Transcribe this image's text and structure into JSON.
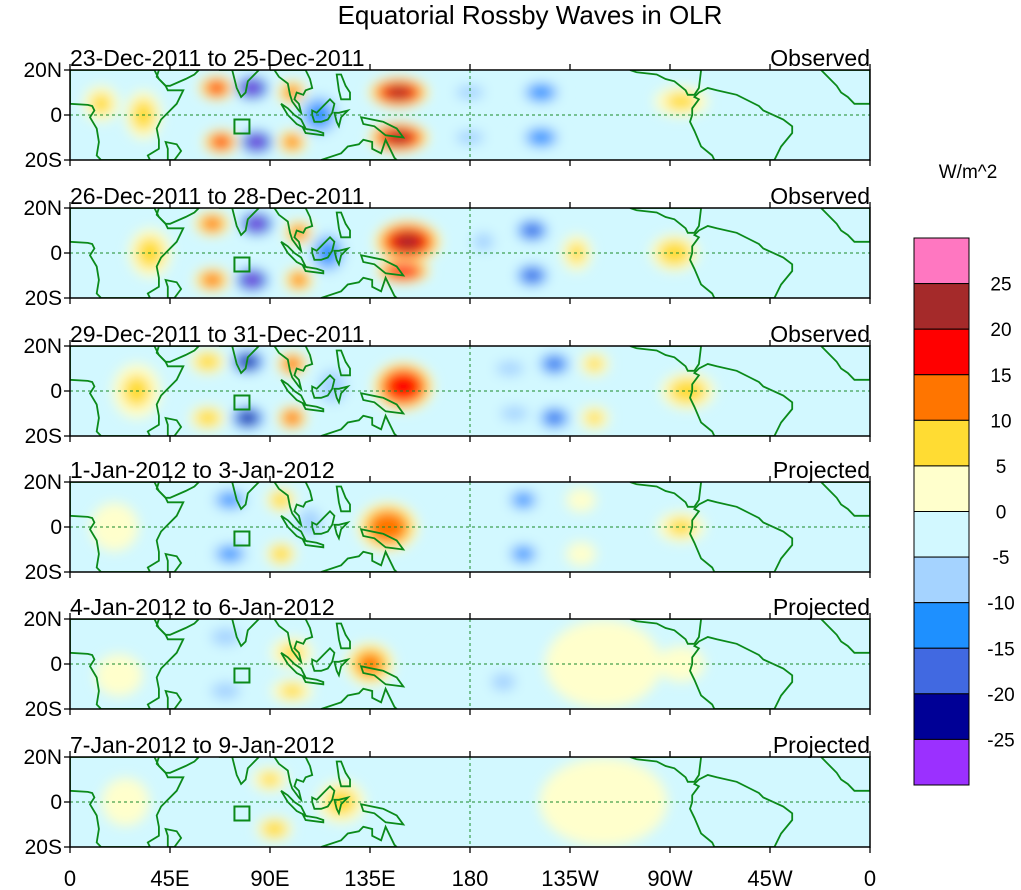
{
  "chart_data": {
    "type": "heatmap",
    "title": "Equatorial Rossby Waves in OLR",
    "units": "W/m^2",
    "x_ticks": [
      "0",
      "45E",
      "90E",
      "135E",
      "180",
      "135W",
      "90W",
      "45W",
      "0"
    ],
    "y_ticks": [
      "20N",
      "0",
      "20S"
    ],
    "xlim_deg_east": [
      0,
      360
    ],
    "ylim_deg": [
      -20,
      20
    ],
    "colorbar": {
      "levels": [
        "25",
        "20",
        "15",
        "10",
        "5",
        "0",
        "-5",
        "-10",
        "-15",
        "-20",
        "-25"
      ],
      "colors": [
        "#ff77c1",
        "#a52a2a",
        "#ff0000",
        "#ff7500",
        "#ffdc33",
        "#ffffcc",
        "#d2f8ff",
        "#a5d3ff",
        "#1e90ff",
        "#4169e1",
        "#000096",
        "#9b30ff"
      ]
    },
    "panels": [
      {
        "period": "23-Dec-2011 to 25-Dec-2011",
        "kind": "Observed",
        "anomalies": [
          {
            "lon": 82,
            "lat": 12,
            "value": -27,
            "sx": 6,
            "sy": 4
          },
          {
            "lon": 84,
            "lat": -12,
            "value": -27,
            "sx": 6,
            "sy": 4
          },
          {
            "lon": 66,
            "lat": 12,
            "value": 16,
            "sx": 6,
            "sy": 4
          },
          {
            "lon": 68,
            "lat": -12,
            "value": 16,
            "sx": 6,
            "sy": 4
          },
          {
            "lon": 100,
            "lat": 10,
            "value": 12,
            "sx": 5,
            "sy": 4
          },
          {
            "lon": 100,
            "lat": -12,
            "value": 12,
            "sx": 5,
            "sy": 4
          },
          {
            "lon": 112,
            "lat": 0,
            "value": -12,
            "sx": 8,
            "sy": 8
          },
          {
            "lon": 148,
            "lat": 10,
            "value": 22,
            "sx": 10,
            "sy": 5
          },
          {
            "lon": 148,
            "lat": -10,
            "value": 22,
            "sx": 10,
            "sy": 5
          },
          {
            "lon": 180,
            "lat": 10,
            "value": -6,
            "sx": 8,
            "sy": 4
          },
          {
            "lon": 180,
            "lat": -10,
            "value": -6,
            "sx": 8,
            "sy": 4
          },
          {
            "lon": 212,
            "lat": 10,
            "value": -14,
            "sx": 7,
            "sy": 4
          },
          {
            "lon": 212,
            "lat": -10,
            "value": -14,
            "sx": 7,
            "sy": 4
          },
          {
            "lon": 33,
            "lat": 0,
            "value": 7,
            "sx": 6,
            "sy": 8
          },
          {
            "lon": 14,
            "lat": 5,
            "value": 6,
            "sx": 6,
            "sy": 6
          },
          {
            "lon": 275,
            "lat": 6,
            "value": 6,
            "sx": 9,
            "sy": 5
          }
        ]
      },
      {
        "period": "26-Dec-2011 to 28-Dec-2011",
        "kind": "Observed",
        "anomalies": [
          {
            "lon": 84,
            "lat": 13,
            "value": -27,
            "sx": 6,
            "sy": 4
          },
          {
            "lon": 82,
            "lat": -12,
            "value": -27,
            "sx": 6,
            "sy": 4
          },
          {
            "lon": 64,
            "lat": 13,
            "value": 13,
            "sx": 6,
            "sy": 4
          },
          {
            "lon": 64,
            "lat": -12,
            "value": 13,
            "sx": 6,
            "sy": 4
          },
          {
            "lon": 103,
            "lat": 9,
            "value": 12,
            "sx": 5,
            "sy": 4
          },
          {
            "lon": 103,
            "lat": -12,
            "value": 12,
            "sx": 5,
            "sy": 4
          },
          {
            "lon": 116,
            "lat": 0,
            "value": -12,
            "sx": 7,
            "sy": 8
          },
          {
            "lon": 152,
            "lat": 5,
            "value": 22,
            "sx": 11,
            "sy": 7
          },
          {
            "lon": 150,
            "lat": -8,
            "value": 20,
            "sx": 9,
            "sy": 4
          },
          {
            "lon": 208,
            "lat": 10,
            "value": -18,
            "sx": 6,
            "sy": 4
          },
          {
            "lon": 208,
            "lat": -10,
            "value": -18,
            "sx": 6,
            "sy": 4
          },
          {
            "lon": 186,
            "lat": 5,
            "value": -6,
            "sx": 6,
            "sy": 5
          },
          {
            "lon": 36,
            "lat": 0,
            "value": 7,
            "sx": 7,
            "sy": 8
          },
          {
            "lon": 272,
            "lat": 0,
            "value": 8,
            "sx": 8,
            "sy": 6
          },
          {
            "lon": 228,
            "lat": 0,
            "value": 6,
            "sx": 5,
            "sy": 6
          }
        ]
      },
      {
        "period": "29-Dec-2011 to 31-Dec-2011",
        "kind": "Observed",
        "anomalies": [
          {
            "lon": 80,
            "lat": 13,
            "value": -24,
            "sx": 6,
            "sy": 4
          },
          {
            "lon": 80,
            "lat": -12,
            "value": -24,
            "sx": 6,
            "sy": 4
          },
          {
            "lon": 62,
            "lat": 13,
            "value": 8,
            "sx": 6,
            "sy": 4
          },
          {
            "lon": 62,
            "lat": -12,
            "value": 8,
            "sx": 6,
            "sy": 4
          },
          {
            "lon": 100,
            "lat": 12,
            "value": 14,
            "sx": 5,
            "sy": 4
          },
          {
            "lon": 100,
            "lat": -12,
            "value": 14,
            "sx": 5,
            "sy": 4
          },
          {
            "lon": 118,
            "lat": 2,
            "value": -10,
            "sx": 6,
            "sy": 7
          },
          {
            "lon": 150,
            "lat": 2,
            "value": 20,
            "sx": 10,
            "sy": 8
          },
          {
            "lon": 198,
            "lat": 10,
            "value": -6,
            "sx": 8,
            "sy": 4
          },
          {
            "lon": 200,
            "lat": -10,
            "value": -6,
            "sx": 8,
            "sy": 4
          },
          {
            "lon": 218,
            "lat": 12,
            "value": -16,
            "sx": 6,
            "sy": 4
          },
          {
            "lon": 218,
            "lat": -12,
            "value": -16,
            "sx": 6,
            "sy": 4
          },
          {
            "lon": 236,
            "lat": 12,
            "value": 6,
            "sx": 5,
            "sy": 4
          },
          {
            "lon": 236,
            "lat": -12,
            "value": 6,
            "sx": 5,
            "sy": 4
          },
          {
            "lon": 278,
            "lat": 0,
            "value": 8,
            "sx": 9,
            "sy": 6
          },
          {
            "lon": 30,
            "lat": 0,
            "value": 6,
            "sx": 8,
            "sy": 9
          }
        ]
      },
      {
        "period": "1-Jan-2012 to 3-Jan-2012",
        "kind": "Projected",
        "anomalies": [
          {
            "lon": 72,
            "lat": 12,
            "value": -12,
            "sx": 7,
            "sy": 4
          },
          {
            "lon": 72,
            "lat": -12,
            "value": -12,
            "sx": 7,
            "sy": 4
          },
          {
            "lon": 95,
            "lat": 12,
            "value": 8,
            "sx": 5,
            "sy": 4
          },
          {
            "lon": 95,
            "lat": -12,
            "value": 8,
            "sx": 5,
            "sy": 4
          },
          {
            "lon": 108,
            "lat": 2,
            "value": -7,
            "sx": 6,
            "sy": 7
          },
          {
            "lon": 143,
            "lat": 0,
            "value": 15,
            "sx": 10,
            "sy": 8
          },
          {
            "lon": 180,
            "lat": 0,
            "value": -4,
            "sx": 8,
            "sy": 8
          },
          {
            "lon": 204,
            "lat": 12,
            "value": -12,
            "sx": 6,
            "sy": 4
          },
          {
            "lon": 204,
            "lat": -12,
            "value": -12,
            "sx": 6,
            "sy": 4
          },
          {
            "lon": 230,
            "lat": 12,
            "value": 5,
            "sx": 5,
            "sy": 4
          },
          {
            "lon": 230,
            "lat": -12,
            "value": 5,
            "sx": 5,
            "sy": 4
          },
          {
            "lon": 275,
            "lat": 0,
            "value": 6,
            "sx": 8,
            "sy": 5
          },
          {
            "lon": 20,
            "lat": 0,
            "value": 5,
            "sx": 8,
            "sy": 8
          }
        ]
      },
      {
        "period": "4-Jan-2012 to 6-Jan-2012",
        "kind": "Projected",
        "anomalies": [
          {
            "lon": 70,
            "lat": 12,
            "value": -8,
            "sx": 7,
            "sy": 4
          },
          {
            "lon": 70,
            "lat": -12,
            "value": -8,
            "sx": 7,
            "sy": 4
          },
          {
            "lon": 100,
            "lat": 5,
            "value": 6,
            "sx": 7,
            "sy": 5
          },
          {
            "lon": 100,
            "lat": -12,
            "value": 6,
            "sx": 7,
            "sy": 4
          },
          {
            "lon": 135,
            "lat": 0,
            "value": 12,
            "sx": 8,
            "sy": 7
          },
          {
            "lon": 175,
            "lat": 3,
            "value": -4,
            "sx": 9,
            "sy": 6
          },
          {
            "lon": 195,
            "lat": -8,
            "value": -6,
            "sx": 7,
            "sy": 5
          },
          {
            "lon": 205,
            "lat": 8,
            "value": -5,
            "sx": 7,
            "sy": 5
          },
          {
            "lon": 240,
            "lat": 0,
            "value": 2,
            "sx": 20,
            "sy": 15
          },
          {
            "lon": 275,
            "lat": 0,
            "value": 3,
            "sx": 8,
            "sy": 6
          },
          {
            "lon": 22,
            "lat": -5,
            "value": 4,
            "sx": 8,
            "sy": 7
          }
        ]
      },
      {
        "period": "7-Jan-2012 to 9-Jan-2012",
        "kind": "Projected",
        "anomalies": [
          {
            "lon": 70,
            "lat": 8,
            "value": -5,
            "sx": 8,
            "sy": 6
          },
          {
            "lon": 60,
            "lat": -12,
            "value": -5,
            "sx": 8,
            "sy": 5
          },
          {
            "lon": 90,
            "lat": 10,
            "value": 6,
            "sx": 6,
            "sy": 4
          },
          {
            "lon": 92,
            "lat": -12,
            "value": 8,
            "sx": 6,
            "sy": 4
          },
          {
            "lon": 122,
            "lat": 0,
            "value": 7,
            "sx": 8,
            "sy": 7
          },
          {
            "lon": 160,
            "lat": 0,
            "value": -5,
            "sx": 10,
            "sy": 8
          },
          {
            "lon": 195,
            "lat": 0,
            "value": -5,
            "sx": 8,
            "sy": 8
          },
          {
            "lon": 240,
            "lat": 0,
            "value": 2,
            "sx": 22,
            "sy": 15
          },
          {
            "lon": 25,
            "lat": 0,
            "value": 4,
            "sx": 8,
            "sy": 8
          }
        ]
      }
    ]
  }
}
